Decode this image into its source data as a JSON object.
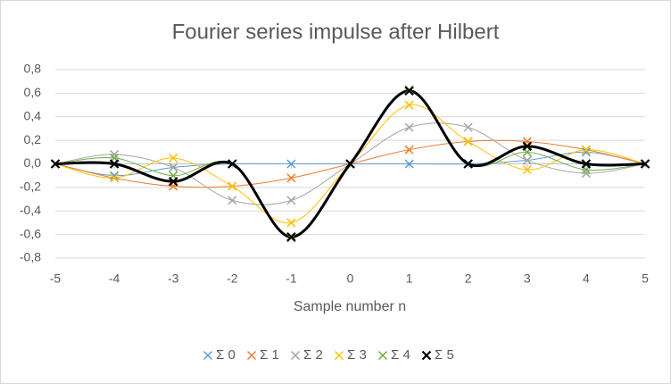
{
  "chart_data": {
    "type": "scatter",
    "title": "Fourier series impulse after Hilbert",
    "x_label": "Sample number n",
    "x": [
      -5,
      -4,
      -3,
      -2,
      -1,
      0,
      1,
      2,
      3,
      4,
      5
    ],
    "series": [
      {
        "name": "Σ 0",
        "color": "#5b9bd5",
        "values": [
          0,
          -0.1,
          -0.03,
          0,
          0,
          0,
          0,
          0,
          0.03,
          0.1,
          0
        ]
      },
      {
        "name": "Σ 1",
        "color": "#ed7d31",
        "values": [
          0,
          -0.12,
          -0.19,
          -0.19,
          -0.12,
          0,
          0.12,
          0.19,
          0.19,
          0.12,
          0
        ]
      },
      {
        "name": "Σ 2",
        "color": "#a5a5a5",
        "values": [
          0,
          0.08,
          -0.03,
          -0.31,
          -0.31,
          0,
          0.31,
          0.31,
          0.03,
          -0.08,
          0
        ]
      },
      {
        "name": "Σ 3",
        "color": "#ffc000",
        "values": [
          0,
          -0.12,
          0.05,
          -0.19,
          -0.5,
          0,
          0.5,
          0.19,
          -0.05,
          0.12,
          0
        ]
      },
      {
        "name": "Σ 4",
        "color": "#70ad47",
        "values": [
          0,
          0.05,
          -0.1,
          0,
          -0.63,
          0,
          0.63,
          0,
          0.1,
          -0.05,
          0
        ]
      },
      {
        "name": "Σ 5",
        "color": "#000000",
        "values": [
          0,
          0,
          -0.15,
          0,
          -0.62,
          0,
          0.62,
          0,
          0.15,
          0,
          0
        ]
      }
    ],
    "xlim": [
      -5,
      5
    ],
    "xticks": [
      -5,
      -4,
      -3,
      -2,
      -1,
      0,
      1,
      2,
      3,
      4,
      5
    ],
    "ylim": [
      -0.8,
      0.8
    ],
    "yticks": [
      {
        "value": -0.8,
        "label": "-0,8"
      },
      {
        "value": -0.6,
        "label": "-0,6"
      },
      {
        "value": -0.4,
        "label": "-0,4"
      },
      {
        "value": -0.2,
        "label": "-0,2"
      },
      {
        "value": 0,
        "label": "0,0"
      },
      {
        "value": 0.2,
        "label": "0,2"
      },
      {
        "value": 0.4,
        "label": "0,4"
      },
      {
        "value": 0.6,
        "label": "0,6"
      },
      {
        "value": 0.8,
        "label": "0,8"
      }
    ],
    "grid": true,
    "smooth": true,
    "legend": "bottom"
  }
}
